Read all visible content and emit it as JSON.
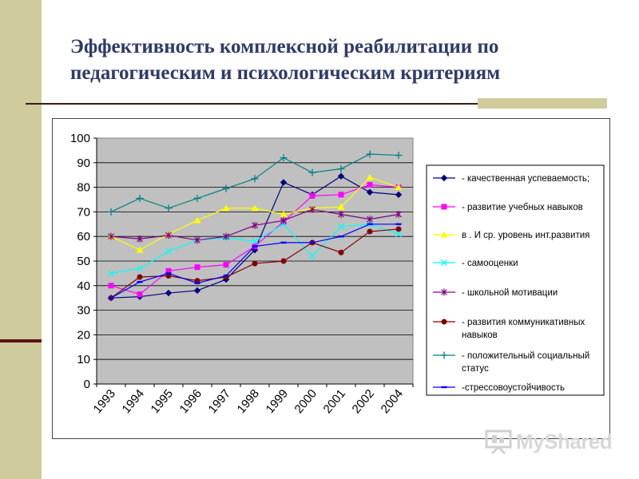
{
  "slide": {
    "title_line1": "Эффективность комплексной реабилитации по",
    "title_line2": "педагогическим и психологическим критериям"
  },
  "watermark": {
    "text": "MyShared"
  },
  "colors": {
    "left_bar": "#cfcb9c",
    "plot_bg": "#c0c0c0",
    "title": "#2e3a6a"
  },
  "chart_data": {
    "type": "line",
    "categories": [
      "1993",
      "1994",
      "1995",
      "1996",
      "1997",
      "1998",
      "1999",
      "2000",
      "2001",
      "2002",
      "2004"
    ],
    "ylim": [
      0,
      100
    ],
    "yticks": [
      0,
      10,
      20,
      30,
      40,
      50,
      60,
      70,
      80,
      90,
      100
    ],
    "grid": true,
    "legend_position": "right",
    "series": [
      {
        "name": "- качественная успеваемость;",
        "color": "#000080",
        "marker": "diamond",
        "values": [
          35,
          35.5,
          37,
          38,
          42.5,
          54.5,
          82,
          77,
          84.5,
          78,
          77
        ]
      },
      {
        "name": "- развитие учебных навыков",
        "color": "#ff00ff",
        "marker": "square",
        "values": [
          40,
          36.5,
          46,
          47.5,
          48.5,
          56,
          66,
          76.5,
          77,
          81,
          80
        ]
      },
      {
        "name": "в . И ср. уровень инт.развития",
        "color": "#ffff00",
        "marker": "triangle",
        "values": [
          60,
          54.5,
          61,
          66.5,
          71.5,
          71.5,
          69,
          71.5,
          72,
          84,
          80
        ]
      },
      {
        "name": "-  самооценки",
        "color": "#00ffff",
        "marker": "x",
        "values": [
          45,
          47,
          54,
          58.5,
          59.5,
          58,
          65,
          52,
          64,
          65,
          61
        ]
      },
      {
        "name": "- школьной мотивации",
        "color": "#800080",
        "marker": "star",
        "values": [
          60,
          59,
          60.5,
          58.5,
          60,
          64.5,
          66.5,
          71,
          69,
          67,
          69
        ]
      },
      {
        "name": "- развития коммуникативных навыков",
        "color": "#800000",
        "marker": "circle",
        "values": [
          35,
          43.5,
          44,
          42,
          43.5,
          49,
          50,
          57.5,
          53.5,
          62,
          63
        ]
      },
      {
        "name": "- положительный социальный статус",
        "color": "#008080",
        "marker": "plus",
        "values": [
          70,
          75.5,
          71.5,
          75.5,
          79.5,
          83.5,
          92,
          86,
          87.5,
          93.5,
          93
        ]
      },
      {
        "name": "-стрессовоустойчивость",
        "color": "#0000ff",
        "marker": "dash",
        "values": [
          35,
          41.5,
          45,
          41,
          44,
          56,
          57.5,
          57.5,
          60,
          65,
          65
        ]
      }
    ]
  }
}
